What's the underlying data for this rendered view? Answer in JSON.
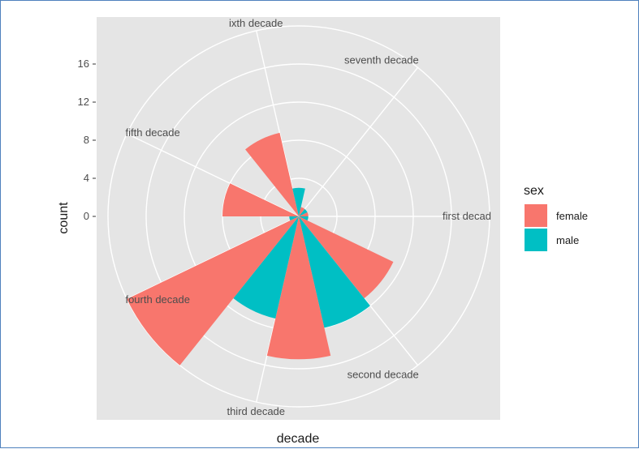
{
  "chart_data": {
    "type": "bar",
    "coord": "polar",
    "categories": [
      "first decade",
      "second decade",
      "third decade",
      "fourth decade",
      "fifth decade",
      "sixth decade",
      "seventh decade"
    ],
    "display_labels": [
      "first decad",
      "second decade",
      "third decade",
      "fourth decade",
      "fifth decade",
      "ixth decade",
      "seventh decade"
    ],
    "series": [
      {
        "name": "female",
        "color": "#F8766D",
        "values": [
          1,
          11,
          15,
          20,
          8,
          9,
          1
        ]
      },
      {
        "name": "male",
        "color": "#00BFC4",
        "values": [
          1,
          12,
          11,
          1,
          0,
          3,
          1
        ]
      }
    ],
    "xlabel": "decade",
    "ylabel": "count",
    "y_ticks": [
      "0",
      "4",
      "8",
      "12",
      "16"
    ],
    "ylim": [
      0,
      20
    ],
    "legend": {
      "title": "sex",
      "position": "right"
    },
    "panel_background": "#E5E5E5",
    "grid": true
  }
}
